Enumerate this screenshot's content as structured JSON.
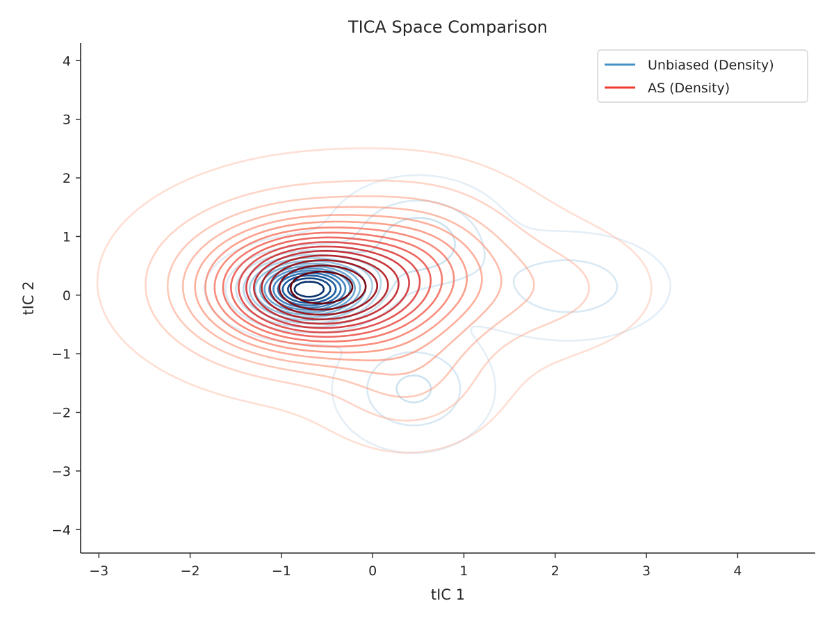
{
  "chart_data": {
    "type": "contour",
    "title": "TICA Space Comparison",
    "xlabel": "tIC 1",
    "ylabel": "tIC 2",
    "xlim": [
      -3.2,
      4.85
    ],
    "ylim": [
      -4.4,
      4.3
    ],
    "xticks": [
      -3,
      -2,
      -1,
      0,
      1,
      2,
      3,
      4
    ],
    "yticks": [
      -4,
      -3,
      -2,
      -1,
      0,
      1,
      2,
      3,
      4
    ],
    "xtick_labels": [
      "−3",
      "−2",
      "−1",
      "0",
      "1",
      "2",
      "3",
      "4"
    ],
    "ytick_labels": [
      "−4",
      "−3",
      "−2",
      "−1",
      "0",
      "1",
      "2",
      "3",
      "4"
    ],
    "grid": false,
    "legend_position": "top-right",
    "series": [
      {
        "name": "Unbiased (Density)",
        "colormap": "Blues",
        "legend_color": "#4292c6",
        "levels": 14,
        "modes": [
          {
            "cx": -0.7,
            "cy": 0.1,
            "sx": 0.42,
            "sy": 0.34,
            "w": 1.0
          },
          {
            "cx": 0.5,
            "cy": 0.9,
            "sx": 0.5,
            "sy": 0.55,
            "w": 0.22
          },
          {
            "cx": 0.45,
            "cy": -1.6,
            "sx": 0.45,
            "sy": 0.55,
            "w": 0.18
          },
          {
            "cx": 2.15,
            "cy": 0.15,
            "sx": 0.6,
            "sy": 0.5,
            "w": 0.14
          }
        ]
      },
      {
        "name": "AS (Density)",
        "colormap": "Reds",
        "legend_color": "#ef3b2c",
        "levels": 16,
        "modes": [
          {
            "cx": -0.65,
            "cy": 0.1,
            "sx": 0.75,
            "sy": 0.65,
            "w": 1.0
          },
          {
            "cx": -0.3,
            "cy": 0.3,
            "sx": 1.2,
            "sy": 1.0,
            "w": 0.35
          },
          {
            "cx": 0.6,
            "cy": 0.5,
            "sx": 0.55,
            "sy": 0.75,
            "w": 0.2
          },
          {
            "cx": 0.4,
            "cy": -1.5,
            "sx": 0.55,
            "sy": 0.65,
            "w": 0.16
          },
          {
            "cx": 2.0,
            "cy": 0.1,
            "sx": 0.65,
            "sy": 0.6,
            "w": 0.1
          }
        ]
      }
    ]
  }
}
